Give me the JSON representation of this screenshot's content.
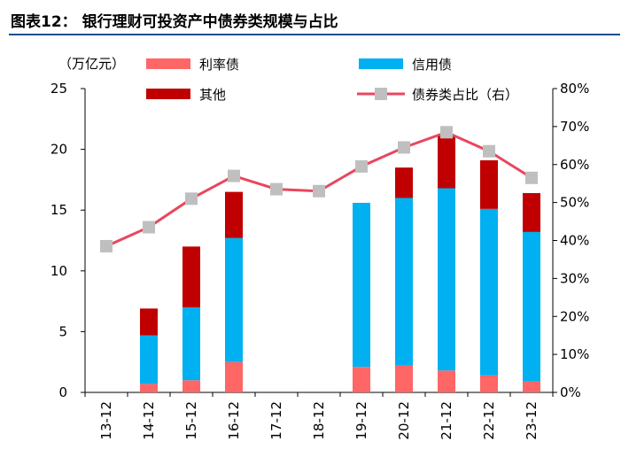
{
  "title": "图表12：  银行理财可投资产中债券类规模与占比",
  "colors": {
    "rate_bond": "#ff6666",
    "credit_bond": "#00b0f0",
    "other": "#c00000",
    "ratio_line": "#e8475f",
    "ratio_marker": "#bfbfbf",
    "title_rule": "#1f4e8c"
  },
  "chart_data": {
    "type": "bar",
    "stacked": true,
    "categories": [
      "13-12",
      "14-12",
      "15-12",
      "16-12",
      "17-12",
      "18-12",
      "19-12",
      "20-12",
      "21-12",
      "22-12",
      "23-12"
    ],
    "series": [
      {
        "name": "利率债",
        "type": "bar",
        "axis": "left",
        "values": [
          null,
          0.7,
          1.0,
          2.5,
          null,
          null,
          2.1,
          2.2,
          1.8,
          1.4,
          0.9
        ]
      },
      {
        "name": "信用债",
        "type": "bar",
        "axis": "left",
        "values": [
          null,
          4.0,
          6.0,
          10.2,
          null,
          null,
          13.5,
          13.8,
          15.0,
          13.7,
          12.3
        ]
      },
      {
        "name": "其他",
        "type": "bar",
        "axis": "left",
        "values": [
          null,
          2.2,
          5.0,
          3.8,
          null,
          null,
          null,
          2.5,
          4.4,
          4.0,
          3.2
        ]
      },
      {
        "name": "债券类占比（右）",
        "type": "line",
        "axis": "right",
        "values": [
          38.5,
          43.5,
          51.0,
          57.0,
          53.5,
          53.0,
          59.5,
          64.5,
          68.5,
          63.5,
          56.5
        ]
      }
    ],
    "y_left": {
      "unit": "（万亿元）",
      "min": 0,
      "max": 25,
      "ticks": [
        "0",
        "5",
        "10",
        "15",
        "20",
        "25"
      ]
    },
    "y_right": {
      "min": 0,
      "max": 80,
      "ticks": [
        "0%",
        "10%",
        "20%",
        "30%",
        "40%",
        "50%",
        "60%",
        "70%",
        "80%"
      ]
    },
    "legend": {
      "placement": "top",
      "items": [
        "利率债",
        "信用债",
        "其他",
        "债券类占比（右）"
      ]
    },
    "grid": false
  }
}
